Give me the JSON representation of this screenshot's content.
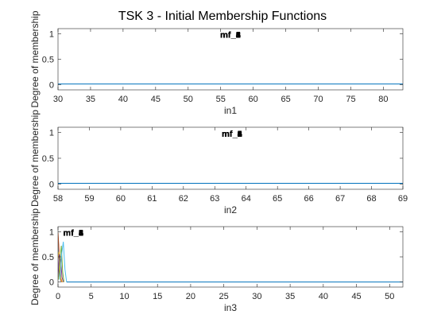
{
  "figure": {
    "title": "TSK 3 - Initial Membership Functions"
  },
  "chart_data": [
    {
      "type": "line",
      "xlabel": "in1",
      "ylabel": "Degree of membership",
      "xlim": [
        30,
        83
      ],
      "ylim": [
        -0.1,
        1.1
      ],
      "xticks": [
        "30",
        "35",
        "40",
        "45",
        "50",
        "55",
        "60",
        "65",
        "70",
        "75",
        "80"
      ],
      "yticks": [
        "0",
        "0.5",
        "1"
      ],
      "mf_labels": [
        {
          "text": "mf_1",
          "x": 56.5,
          "y": 0.98
        },
        {
          "text": "mf_2",
          "x": 56.5,
          "y": 0.98
        },
        {
          "text": "mf_3",
          "x": 56.5,
          "y": 0.98
        },
        {
          "text": "mf_4",
          "x": 56.5,
          "y": 0.98
        },
        {
          "text": "mf_5",
          "x": 56.5,
          "y": 0.98
        },
        {
          "text": "mf_6",
          "x": 56.5,
          "y": 0.98
        }
      ],
      "series": [
        {
          "color": "#0072BD",
          "x": [
            30,
            83
          ],
          "y": [
            0.015,
            0.015
          ]
        }
      ]
    },
    {
      "type": "line",
      "xlabel": "in2",
      "ylabel": "Degree of membership",
      "xlim": [
        58,
        69
      ],
      "ylim": [
        -0.1,
        1.1
      ],
      "xticks": [
        "58",
        "59",
        "60",
        "61",
        "62",
        "63",
        "64",
        "65",
        "66",
        "67",
        "68",
        "69"
      ],
      "yticks": [
        "0",
        "0.5",
        "1"
      ],
      "mf_labels": [
        {
          "text": "mf_1",
          "x": 63.55,
          "y": 0.98
        },
        {
          "text": "mf_2",
          "x": 63.55,
          "y": 0.98
        },
        {
          "text": "mf_3",
          "x": 63.55,
          "y": 0.98
        },
        {
          "text": "mf_4",
          "x": 63.55,
          "y": 0.98
        },
        {
          "text": "mf_5",
          "x": 63.55,
          "y": 0.98
        },
        {
          "text": "mf_6",
          "x": 63.55,
          "y": 0.98
        }
      ],
      "series": [
        {
          "color": "#0072BD",
          "x": [
            58,
            69
          ],
          "y": [
            0.015,
            0.015
          ]
        }
      ]
    },
    {
      "type": "line",
      "xlabel": "in3",
      "ylabel": "Degree of membership",
      "xlim": [
        0,
        52
      ],
      "ylim": [
        -0.1,
        1.1
      ],
      "xticks": [
        "0",
        "5",
        "10",
        "15",
        "20",
        "25",
        "30",
        "35",
        "40",
        "45",
        "50"
      ],
      "yticks": [
        "0",
        "0.5",
        "1"
      ],
      "mf_labels": [
        {
          "text": "mf_1",
          "x": 2.3,
          "y": 0.98
        },
        {
          "text": "mf_2",
          "x": 2.3,
          "y": 0.98
        },
        {
          "text": "mf_3",
          "x": 2.3,
          "y": 0.98
        },
        {
          "text": "mf_4",
          "x": 2.3,
          "y": 0.98
        },
        {
          "text": "mf_5",
          "x": 2.3,
          "y": 0.98
        },
        {
          "text": "mf_6",
          "x": 2.3,
          "y": 0.98
        }
      ],
      "series": [
        {
          "color": "#0072BD",
          "x": [
            0.0,
            0.15,
            0.3,
            0.45,
            0.6
          ],
          "y": [
            0.92,
            0.55,
            0.12,
            0.02,
            0.0
          ]
        },
        {
          "color": "#D95319",
          "x": [
            0.0,
            0.15,
            0.3,
            0.45,
            0.6
          ],
          "y": [
            0.98,
            0.65,
            0.2,
            0.03,
            0.0
          ]
        },
        {
          "color": "#EDB120",
          "x": [
            0.0,
            0.15,
            0.3,
            0.45,
            0.6,
            0.75
          ],
          "y": [
            0.45,
            0.6,
            0.3,
            0.08,
            0.01,
            0.0
          ]
        },
        {
          "color": "#7E2F8E",
          "x": [
            0.0,
            0.2,
            0.4,
            0.6,
            0.8
          ],
          "y": [
            0.1,
            0.55,
            0.45,
            0.1,
            0.0
          ]
        },
        {
          "color": "#77AC30",
          "x": [
            0.1,
            0.3,
            0.5,
            0.7,
            0.9
          ],
          "y": [
            0.05,
            0.45,
            0.72,
            0.2,
            0.0
          ]
        },
        {
          "color": "#4DBEEE",
          "x": [
            0.3,
            0.55,
            0.8,
            1.05,
            1.3
          ],
          "y": [
            0.05,
            0.55,
            0.8,
            0.25,
            0.0
          ]
        },
        {
          "color": "#0072BD",
          "x": [
            1.3,
            52
          ],
          "y": [
            0.0,
            0.0
          ]
        }
      ]
    }
  ]
}
